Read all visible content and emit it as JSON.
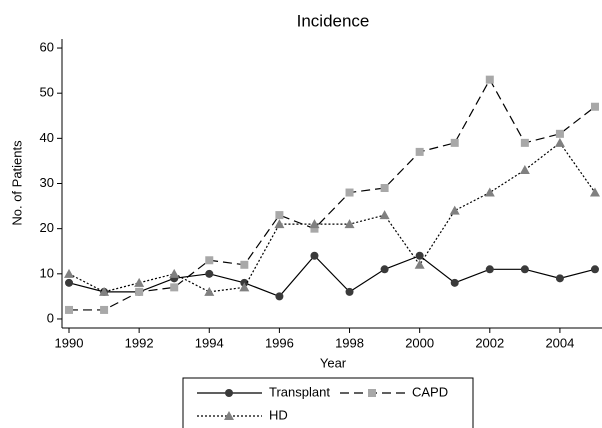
{
  "chart_data": {
    "type": "line",
    "title": "Incidence",
    "x_label": "Year",
    "y_label": "No. of Patients",
    "x": [
      1990,
      1991,
      1992,
      1993,
      1994,
      1995,
      1996,
      1997,
      1998,
      1999,
      2000,
      2001,
      2002,
      2003,
      2004,
      2005
    ],
    "series": [
      {
        "name": "Transplant",
        "color": "#3a3a3a",
        "line_style": "solid",
        "marker": "circle",
        "values": [
          8,
          6,
          6,
          9,
          10,
          8,
          5,
          14,
          6,
          11,
          14,
          8,
          11,
          11,
          9,
          11
        ]
      },
      {
        "name": "CAPD",
        "color": "#a8a8a8",
        "line_style": "dashed",
        "marker": "square",
        "values": [
          2,
          2,
          6,
          7,
          13,
          12,
          23,
          20,
          28,
          29,
          37,
          39,
          53,
          39,
          41,
          47
        ]
      },
      {
        "name": "HD",
        "color": "#808080",
        "line_style": "dotted",
        "marker": "triangle",
        "values": [
          10,
          6,
          8,
          10,
          6,
          7,
          21,
          21,
          21,
          23,
          12,
          24,
          28,
          33,
          39,
          28
        ]
      }
    ],
    "xlim": [
      1989.8,
      2005.2
    ],
    "xticks": [
      1990,
      1992,
      1994,
      1996,
      1998,
      2000,
      2002,
      2004
    ],
    "ylim": [
      -2,
      62
    ],
    "yticks": [
      0,
      10,
      20,
      30,
      40,
      50,
      60
    ],
    "grid": false
  }
}
